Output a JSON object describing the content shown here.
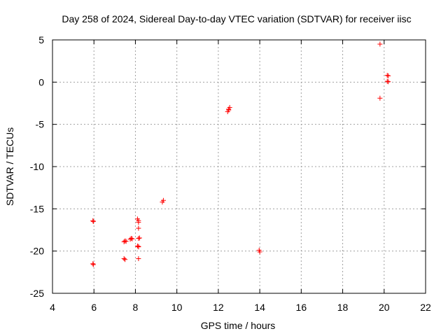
{
  "chart_data": {
    "type": "scatter",
    "title": "Day 258 of 2024, Sidereal Day-to-day VTEC variation (SDTVAR) for receiver iisc",
    "xlabel": "GPS time / hours",
    "ylabel": "SDTVAR / TECUs",
    "xlim": [
      4,
      22
    ],
    "ylim": [
      -25,
      5
    ],
    "xticks": [
      4,
      6,
      8,
      10,
      12,
      14,
      16,
      18,
      20,
      22
    ],
    "yticks": [
      5,
      0,
      -5,
      -10,
      -15,
      -20,
      -25
    ],
    "grid": true,
    "marker": "+",
    "marker_color": "#ff0000",
    "series": [
      {
        "name": "SDTVAR",
        "x": [
          5.95,
          5.97,
          5.95,
          5.97,
          7.45,
          7.5,
          7.55,
          7.45,
          7.5,
          7.75,
          7.8,
          7.85,
          8.1,
          8.15,
          8.15,
          8.15,
          8.15,
          8.1,
          8.15,
          8.15,
          8.2,
          8.15,
          9.3,
          9.35,
          12.45,
          12.5,
          12.55,
          12.5,
          13.97,
          14.0,
          19.8,
          19.8,
          20.15,
          20.2,
          20.15,
          20.2
        ],
        "y": [
          -16.4,
          -16.5,
          -21.5,
          -21.6,
          -18.9,
          -18.8,
          -18.85,
          -20.9,
          -21.0,
          -18.6,
          -18.5,
          -18.55,
          -16.2,
          -16.4,
          -16.6,
          -17.3,
          -18.5,
          -19.4,
          -19.5,
          -19.45,
          -18.45,
          -20.9,
          -14.2,
          -14.0,
          -3.5,
          -3.3,
          -3.0,
          -3.2,
          -19.9,
          -20.1,
          4.5,
          -1.9,
          0.8,
          0.75,
          0.1,
          0.05
        ]
      }
    ]
  }
}
